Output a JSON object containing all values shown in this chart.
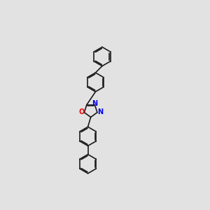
{
  "bg_color": "#e2e2e2",
  "bond_color": "#1a1a1a",
  "N_color": "#0000ee",
  "O_color": "#ee0000",
  "bond_width": 1.2,
  "figsize": [
    3.0,
    3.0
  ],
  "dpi": 100,
  "xlim": [
    3.5,
    8.5
  ],
  "ylim": [
    0.5,
    11.5
  ]
}
